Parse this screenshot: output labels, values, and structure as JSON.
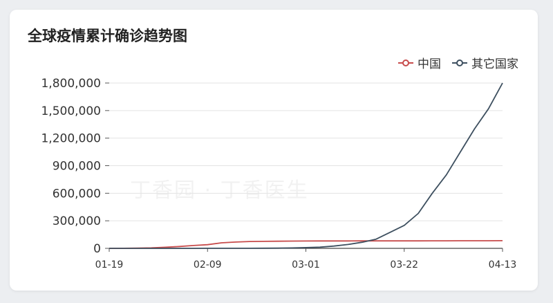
{
  "card": {
    "title": "全球疫情累计确诊趋势图",
    "watermark": "丁香园 · 丁香医生"
  },
  "chart_data": {
    "type": "line",
    "title": "全球疫情累计确诊趋势图",
    "xlabel": "",
    "ylabel": "",
    "ylim": [
      0,
      1800000
    ],
    "yticks": [
      0,
      300000,
      600000,
      900000,
      1200000,
      1500000,
      1800000
    ],
    "ytick_labels": [
      "0",
      "300,000",
      "600,000",
      "900,000",
      "1,200,000",
      "1,500,000",
      "1,800,000"
    ],
    "xtick_labels": [
      "01-19",
      "02-09",
      "03-01",
      "03-22",
      "04-13"
    ],
    "grid": true,
    "legend": "top-right",
    "x": [
      "01-19",
      "01-22",
      "01-25",
      "01-28",
      "01-31",
      "02-03",
      "02-06",
      "02-09",
      "02-12",
      "02-15",
      "02-18",
      "02-21",
      "02-24",
      "02-27",
      "03-01",
      "03-04",
      "03-07",
      "03-10",
      "03-13",
      "03-16",
      "03-19",
      "03-22",
      "03-25",
      "03-28",
      "03-31",
      "04-03",
      "04-06",
      "04-09",
      "04-13"
    ],
    "series": [
      {
        "name": "中国",
        "color": "#c74b4b",
        "values": [
          200,
          500,
          2000,
          5500,
          11800,
          20400,
          31200,
          40200,
          60300,
          68500,
          74200,
          76300,
          77700,
          78900,
          79900,
          80400,
          80800,
          80900,
          81000,
          81100,
          81200,
          81300,
          81600,
          81900,
          82300,
          82600,
          82800,
          83000,
          83300
        ]
      },
      {
        "name": "其它国家",
        "color": "#3d4f5f",
        "values": [
          0,
          10,
          30,
          60,
          140,
          200,
          260,
          400,
          500,
          700,
          1000,
          1500,
          2500,
          4500,
          8000,
          13000,
          25000,
          42000,
          66000,
          100000,
          175000,
          250000,
          380000,
          600000,
          800000,
          1050000,
          1300000,
          1520000,
          1800000
        ]
      }
    ]
  }
}
